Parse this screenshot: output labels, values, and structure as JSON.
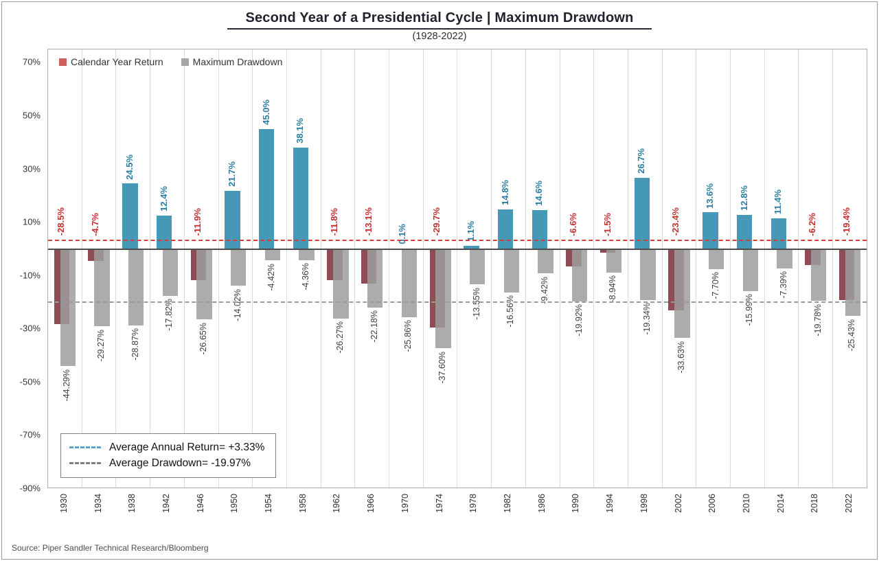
{
  "title": "Second Year of a Presidential Cycle | Maximum Drawdown",
  "subtitle": "(1928-2022)",
  "source": "Source: Piper Sandler Technical Research/Bloomberg",
  "legend": {
    "return_label": "Calendar Year Return",
    "drawdown_label": "Maximum Drawdown"
  },
  "annotations": {
    "avg_return_label": "Average Annual Return= +3.33%",
    "avg_drawdown_label": "Average Drawdown= -19.97%",
    "avg_return_value": 3.33,
    "avg_drawdown_value": -19.97
  },
  "y_axis": {
    "ticks": [
      "70%",
      "50%",
      "30%",
      "10%",
      "-10%",
      "-30%",
      "-50%",
      "-70%",
      "-90%"
    ],
    "values": [
      70,
      50,
      30,
      10,
      -10,
      -30,
      -50,
      -70,
      -90
    ]
  },
  "colors": {
    "positive_return_bar": "#4699b6",
    "negative_return_bar": "#8e4d55",
    "drawdown_bar": "#9d9d9d",
    "positive_label": "#2b7ea1",
    "negative_label": "#c23330",
    "drawdown_label": "#3f3f3f",
    "avg_return_line": "#d23f3a",
    "avg_drawdown_line": "#9b9b9b",
    "legend_return_swatch": "#d0615a",
    "legend_drawdown_swatch": "#a6a6a6",
    "annotation_return_sample": "#56a7c5",
    "annotation_drawdown_sample": "#7f7f7f"
  },
  "chart_data": {
    "type": "bar",
    "title": "Second Year of a Presidential Cycle | Maximum Drawdown",
    "subtitle": "(1928-2022)",
    "axis": {
      "max": 75,
      "min": -90
    },
    "ylim": [
      -90,
      75
    ],
    "grid": "vertical-only",
    "legend_position": "top-left",
    "categories": [
      1930,
      1934,
      1938,
      1942,
      1946,
      1950,
      1954,
      1958,
      1962,
      1966,
      1970,
      1974,
      1978,
      1982,
      1986,
      1990,
      1994,
      1998,
      2002,
      2006,
      2010,
      2014,
      2018,
      2022
    ],
    "series": [
      {
        "name": "Calendar Year Return",
        "values": [
          -28.5,
          -4.7,
          24.5,
          12.4,
          -11.9,
          21.7,
          45.0,
          38.1,
          -11.8,
          -13.1,
          0.1,
          -29.7,
          1.1,
          14.8,
          14.6,
          -6.6,
          -1.5,
          26.7,
          -23.4,
          13.6,
          12.8,
          11.4,
          -6.2,
          -19.4
        ]
      },
      {
        "name": "Maximum Drawdown",
        "values": [
          -44.29,
          -29.27,
          -28.87,
          -17.82,
          -26.65,
          -14.02,
          -4.42,
          -4.36,
          -26.27,
          -22.18,
          -25.86,
          -37.6,
          -13.55,
          -16.56,
          -9.42,
          -19.92,
          -8.94,
          -19.34,
          -33.63,
          -7.7,
          -15.99,
          -7.39,
          -19.78,
          -25.43
        ]
      }
    ],
    "value_labels": {
      "return": [
        "-28.5%",
        "-4.7%",
        "24.5%",
        "12.4%",
        "-11.9%",
        "21.7%",
        "45.0%",
        "38.1%",
        "-11.8%",
        "-13.1%",
        "0.1%",
        "-29.7%",
        "1.1%",
        "14.8%",
        "14.6%",
        "-6.6%",
        "-1.5%",
        "26.7%",
        "-23.4%",
        "13.6%",
        "12.8%",
        "11.4%",
        "-6.2%",
        "-19.4%"
      ],
      "drawdown": [
        "-44.29%",
        "-29.27%",
        "-28.87%",
        "-17.82%",
        "-26.65%",
        "-14.02%",
        "-4.42%",
        "-4.36%",
        "-26.27%",
        "-22.18%",
        "-25.86%",
        "-37.60%",
        "-13.55%",
        "-16.56%",
        "-9.42%",
        "-19.92%",
        "-8.94%",
        "-19.34%",
        "-33.63%",
        "-7.70%",
        "-15.99%",
        "-7.39%",
        "-19.78%",
        "-25.43%"
      ]
    }
  }
}
